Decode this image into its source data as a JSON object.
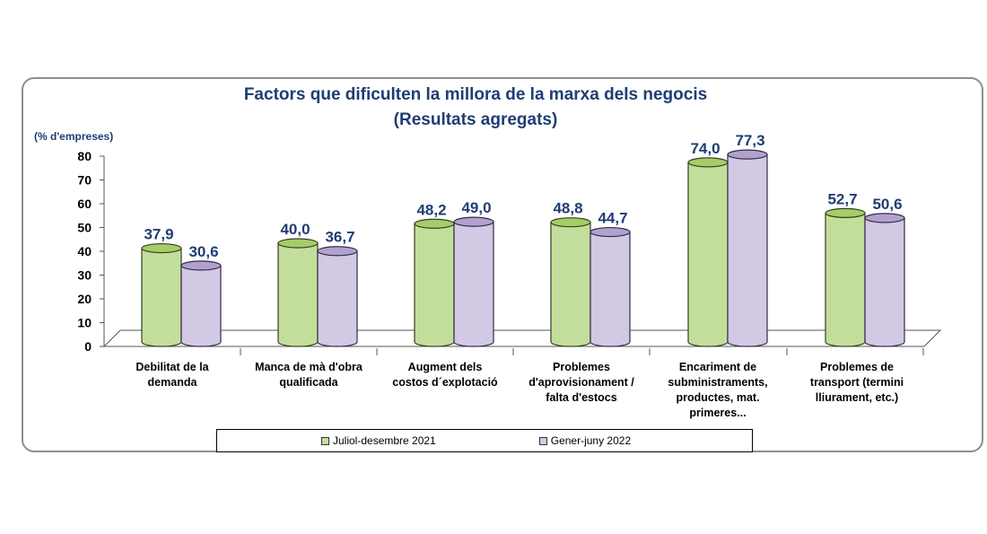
{
  "chart_data": {
    "type": "bar",
    "title": "Factors que dificulten la millora de la marxa dels negocis",
    "subtitle": "(Resultats agregats)",
    "ylabel": "(% d'empreses)",
    "ylim": [
      0,
      80
    ],
    "yticks": [
      "0",
      "10",
      "20",
      "30",
      "40",
      "50",
      "60",
      "70",
      "80"
    ],
    "categories": [
      [
        "Debilitat de la",
        "demanda"
      ],
      [
        "Manca de mà d'obra",
        "qualificada"
      ],
      [
        "Augment dels",
        "costos d´explotació"
      ],
      [
        "Problemes",
        "d'aprovisionament /",
        "falta d'estocs"
      ],
      [
        "Encariment de",
        "subministraments,",
        "productes, mat.",
        "primeres..."
      ],
      [
        "Problemes de",
        "transport (termini",
        "lliurament, etc.)"
      ]
    ],
    "series": [
      {
        "name": "Juliol-desembre 2021",
        "values": [
          37.9,
          40.0,
          48.2,
          48.8,
          74.0,
          52.7
        ],
        "labels": [
          "37,9",
          "40,0",
          "48,2",
          "48,8",
          "74,0",
          "52,7"
        ],
        "color": "#c3de9a",
        "top_color": "#a6cd6a",
        "edge_color": "#33401f"
      },
      {
        "name": "Gener-juny 2022",
        "values": [
          30.6,
          36.7,
          49.0,
          44.7,
          77.3,
          50.6
        ],
        "labels": [
          "30,6",
          "36,7",
          "49,0",
          "44,7",
          "77,3",
          "50,6"
        ],
        "color": "#d2c9e4",
        "top_color": "#b0a2cd",
        "edge_color": "#33294a"
      }
    ],
    "grid": false,
    "legend_position": "bottom",
    "label_color": "#1f3d73"
  }
}
